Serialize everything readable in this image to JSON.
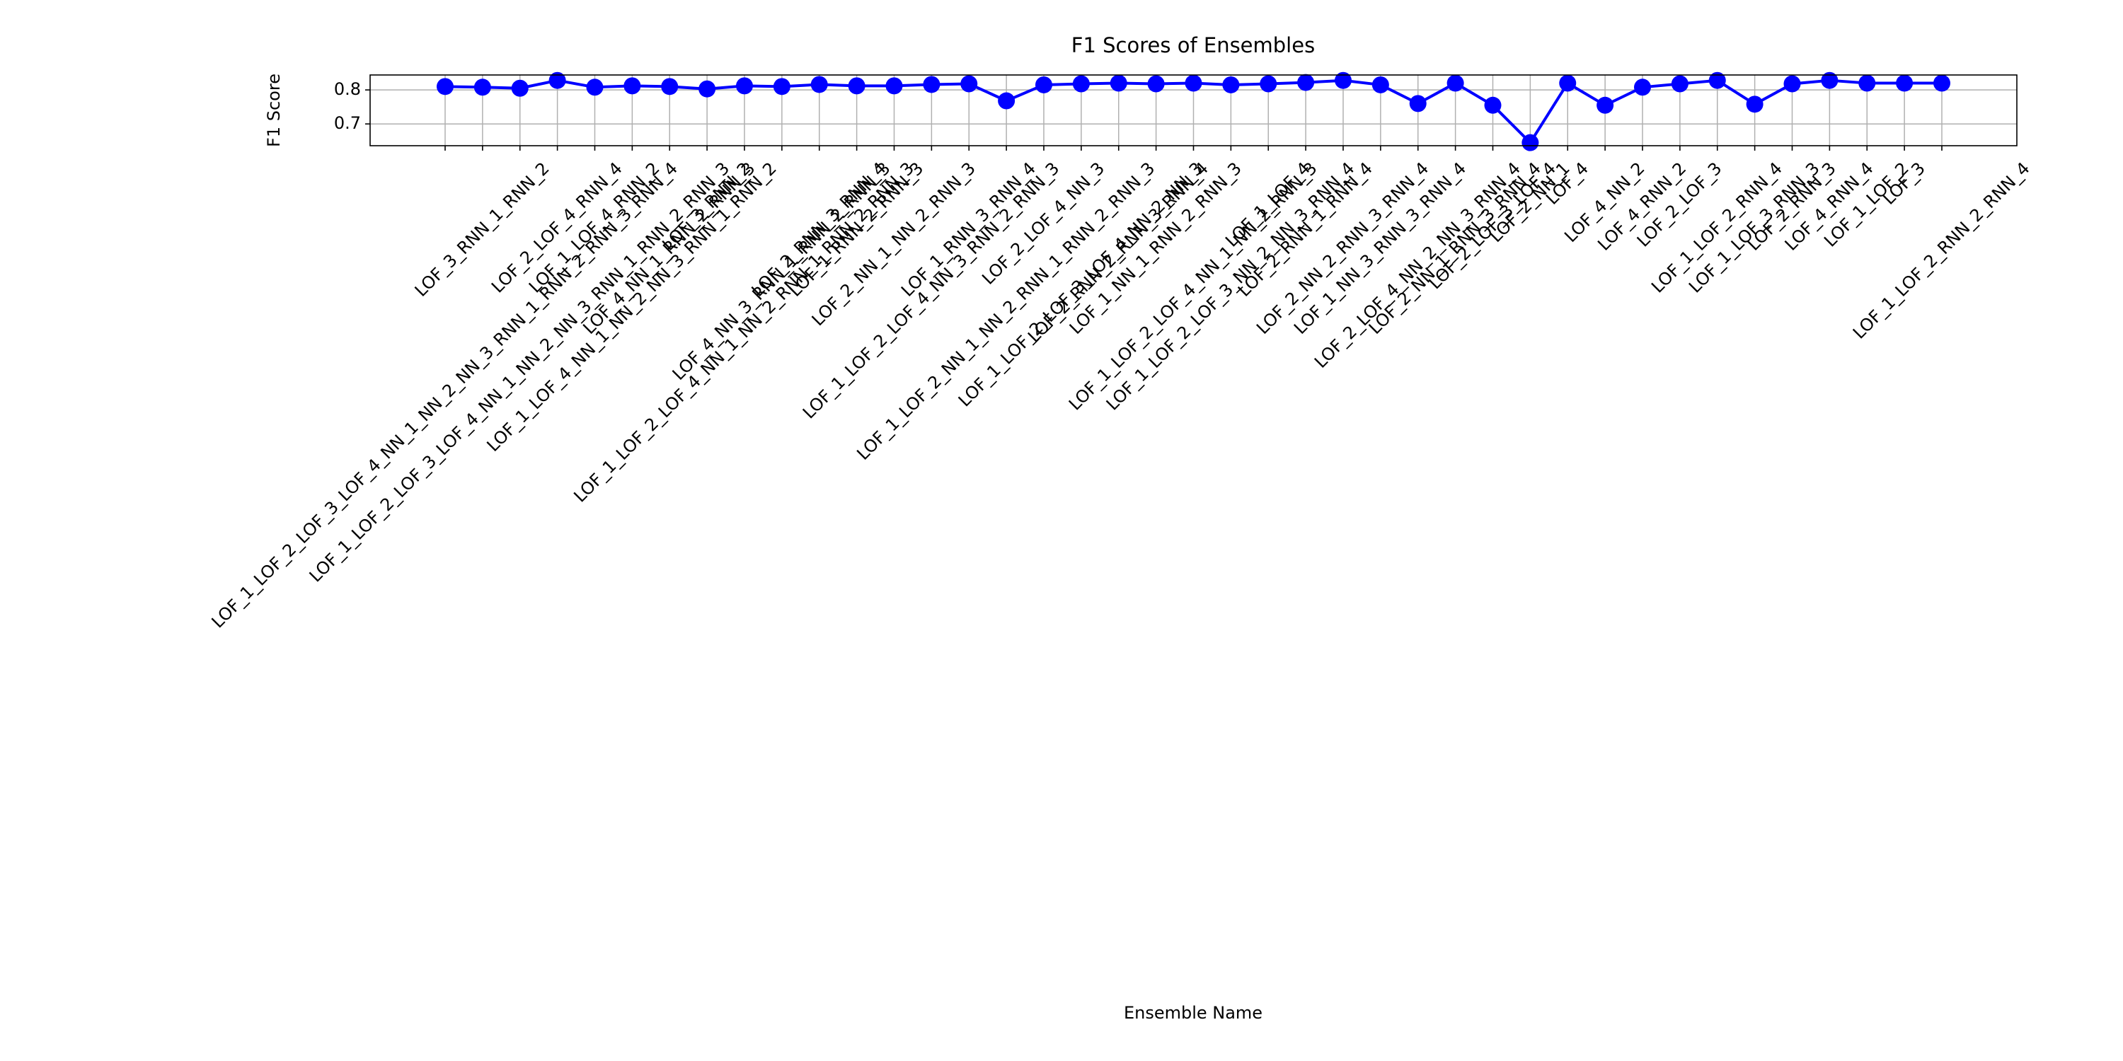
{
  "chart_data": {
    "type": "line",
    "title": "F1 Scores of Ensembles",
    "x_label": "Ensemble Name",
    "y_label": "F1 Score",
    "categories": [
      "LOF_1_LOF_2_LOF_3_LOF_4_NN_1_NN_2_NN_3_RNN_1_RNN_2_RNN_3_RNN_4",
      "LOF_3_RNN_1_RNN_2",
      "LOF_1_LOF_2_LOF_3_LOF_4_NN_1_NN_2_NN_3_RNN_1_RNN_2_RNN_3",
      "LOF_2_LOF_4_RNN_4",
      "LOF_1_LOF_4_RNN_2",
      "LOF_1_LOF_4_NN_1_NN_2_NN_3_RNN_1_RNN_2",
      "LOF_4_NN_1_RNN_2_RNN_3",
      "LOF_3_RNN_2",
      "LOF_1_LOF_2_LOF_4_NN_1_NN_2_RNN_1_RNN_2_RNN_3",
      "LOF_4_NN_3_RNN_1_RNN_2_RNN_3",
      "LOF_2_RNN_3_RNN_4",
      "LOF_1_RNN_2_RNN_3",
      "LOF_2_NN_1_NN_2_RNN_3",
      "LOF_1_LOF_2_LOF_4_NN_3_RNN_2_RNN_3",
      "LOF_1_RNN_3_RNN_4",
      "LOF_1_LOF_2_NN_1_NN_2_RNN_1_RNN_2_RNN_3",
      "LOF_2_LOF_4_NN_3",
      "LOF_1_LOF_2_LOF_3_LOF_4_NN_2_NN_3",
      "LOF_2_RNN_2_RNN_3_RNN_4",
      "LOF_1_NN_1_RNN_2_RNN_3",
      "LOF_1_LOF_2_LOF_4_NN_1_NN_2_RNN_3",
      "LOF_1_LOF_2_LOF_3_NN_2_NN_3_RNN_4",
      "LOF_1_LOF_4",
      "LOF_2_RNN_1_RNN_4",
      "LOF_2_NN_2_RNN_3_RNN_4",
      "LOF_1_NN_3_RNN_3_RNN_4",
      "LOF_2_LOF_4_NN_2_NN_3_RNN_4",
      "LOF_2_NN_1_RNN_3_RNN_4",
      "LOF_2_LOF_3_LOF_4",
      "LOF_2_NN_1",
      "LOF_4",
      "LOF_4_NN_2",
      "LOF_4_RNN_2",
      "LOF_2_LOF_3",
      "LOF_1_LOF_2_RNN_4",
      "LOF_1_LOF_3_RNN_3",
      "LOF_2_RNN_3",
      "LOF_4_RNN_4",
      "LOF_1_LOF_2",
      "LOF_3",
      "LOF_1_LOF_2_RNN_2_RNN_4"
    ],
    "values": [
      0.81,
      0.808,
      0.805,
      0.828,
      0.808,
      0.812,
      0.81,
      0.803,
      0.812,
      0.81,
      0.816,
      0.812,
      0.812,
      0.816,
      0.818,
      0.768,
      0.815,
      0.818,
      0.82,
      0.818,
      0.82,
      0.815,
      0.818,
      0.822,
      0.828,
      0.815,
      0.76,
      0.82,
      0.755,
      0.645,
      0.82,
      0.755,
      0.808,
      0.818,
      0.828,
      0.758,
      0.818,
      0.828,
      0.82,
      0.82,
      0.82
    ],
    "color": "#0000ff",
    "ylim": [
      0.636,
      0.844
    ],
    "yticks": [
      0.7,
      0.8
    ],
    "grid": true
  }
}
